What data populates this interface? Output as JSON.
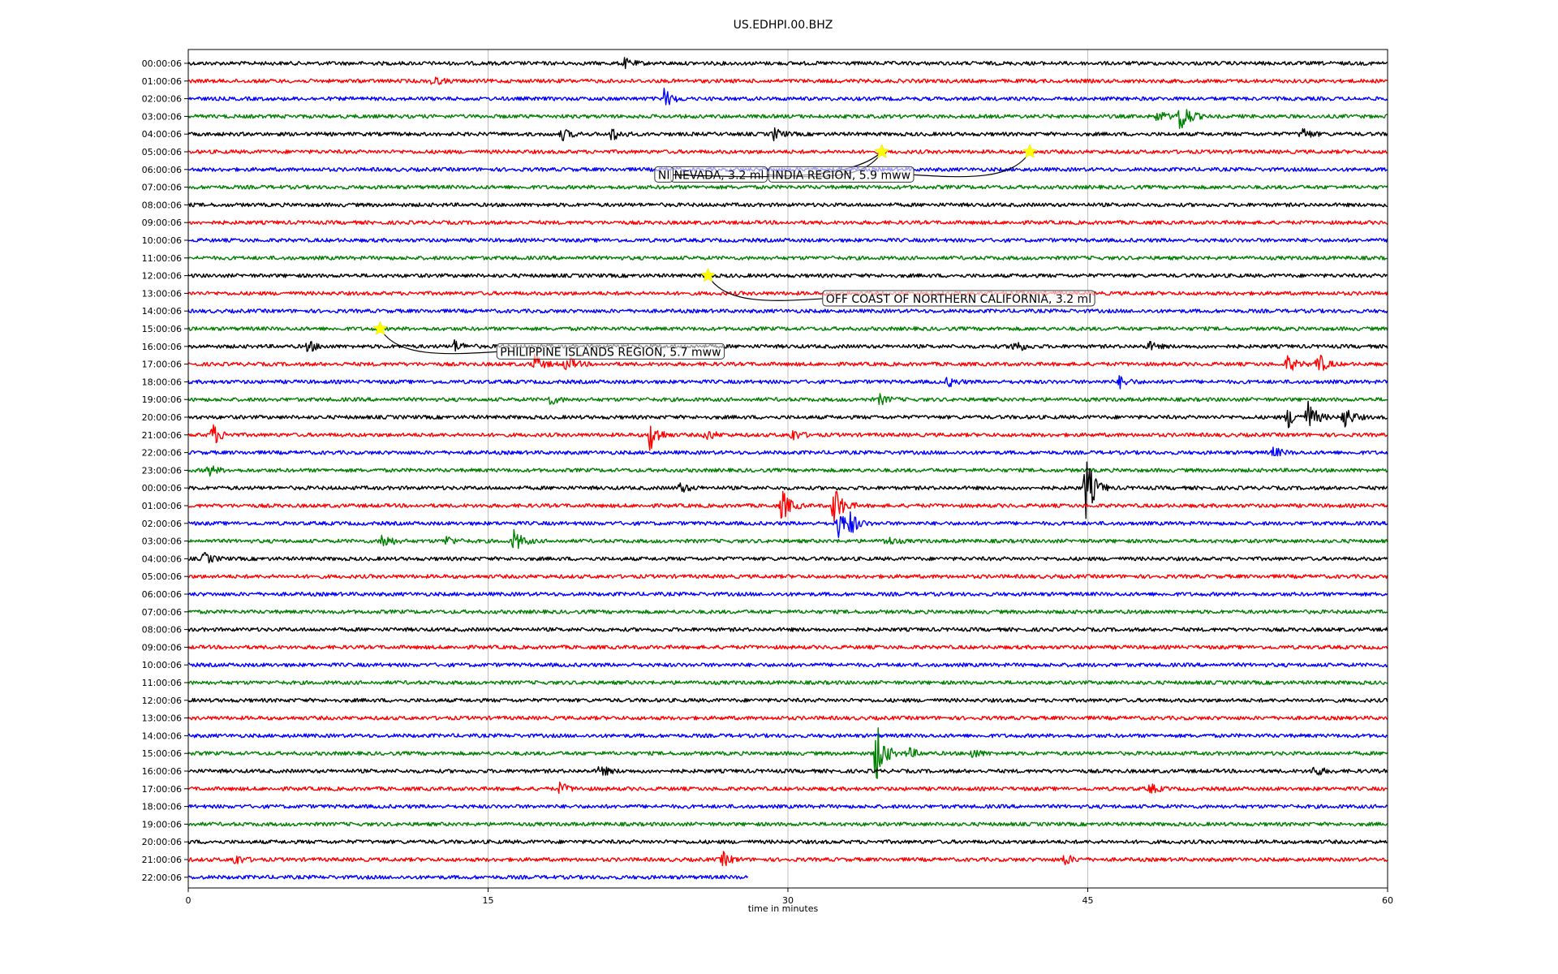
{
  "chart_data": {
    "type": "line",
    "title": "US.EDHPI.00.BHZ",
    "xlabel": "time in minutes",
    "ylabel": "",
    "xlim": [
      0,
      60
    ],
    "xticks": [
      "0",
      "15",
      "30",
      "45",
      "60"
    ],
    "grid": "vertical",
    "line_labels": [
      "00:00:06",
      "01:00:06",
      "02:00:06",
      "03:00:06",
      "04:00:06",
      "05:00:06",
      "06:00:06",
      "07:00:06",
      "08:00:06",
      "09:00:06",
      "10:00:06",
      "11:00:06",
      "12:00:06",
      "13:00:06",
      "14:00:06",
      "15:00:06",
      "16:00:06",
      "17:00:06",
      "18:00:06",
      "19:00:06",
      "20:00:06",
      "21:00:06",
      "22:00:06",
      "23:00:06",
      "00:00:06",
      "01:00:06",
      "02:00:06",
      "03:00:06",
      "04:00:06",
      "05:00:06",
      "06:00:06",
      "07:00:06",
      "08:00:06",
      "09:00:06",
      "10:00:06",
      "11:00:06",
      "12:00:06",
      "13:00:06",
      "14:00:06",
      "15:00:06",
      "16:00:06",
      "17:00:06",
      "18:00:06",
      "19:00:06",
      "20:00:06",
      "21:00:06",
      "22:00:06"
    ],
    "line_colors": [
      "#000000",
      "#ff0000",
      "#0000ff",
      "#008000"
    ],
    "last_line_end_minute": 28,
    "bursts": [
      {
        "line": 0,
        "t": 21.8,
        "amp": 0.5
      },
      {
        "line": 1,
        "t": 12.2,
        "amp": 0.5
      },
      {
        "line": 2,
        "t": 23.8,
        "amp": 1.0
      },
      {
        "line": 3,
        "t": 48.5,
        "amp": 0.6
      },
      {
        "line": 3,
        "t": 49.6,
        "amp": 2.2
      },
      {
        "line": 4,
        "t": 18.7,
        "amp": 0.6
      },
      {
        "line": 4,
        "t": 21.2,
        "amp": 0.7
      },
      {
        "line": 4,
        "t": 29.3,
        "amp": 0.6
      },
      {
        "line": 4,
        "t": 55.7,
        "amp": 0.7
      },
      {
        "line": 16,
        "t": 6.0,
        "amp": 0.6
      },
      {
        "line": 16,
        "t": 13.3,
        "amp": 0.6
      },
      {
        "line": 16,
        "t": 41.3,
        "amp": 0.8
      },
      {
        "line": 16,
        "t": 48.0,
        "amp": 0.5
      },
      {
        "line": 17,
        "t": 17.3,
        "amp": 1.0
      },
      {
        "line": 17,
        "t": 18.9,
        "amp": 0.9
      },
      {
        "line": 17,
        "t": 55.0,
        "amp": 0.9
      },
      {
        "line": 17,
        "t": 56.5,
        "amp": 1.2
      },
      {
        "line": 18,
        "t": 38.0,
        "amp": 0.5
      },
      {
        "line": 18,
        "t": 46.6,
        "amp": 0.6
      },
      {
        "line": 19,
        "t": 18.1,
        "amp": 0.5
      },
      {
        "line": 19,
        "t": 34.6,
        "amp": 0.5
      },
      {
        "line": 20,
        "t": 55.0,
        "amp": 1.1
      },
      {
        "line": 20,
        "t": 56.0,
        "amp": 1.7
      },
      {
        "line": 20,
        "t": 57.8,
        "amp": 1.3
      },
      {
        "line": 21,
        "t": 1.2,
        "amp": 1.2
      },
      {
        "line": 21,
        "t": 23.1,
        "amp": 1.7
      },
      {
        "line": 21,
        "t": 25.9,
        "amp": 0.6
      },
      {
        "line": 21,
        "t": 30.2,
        "amp": 0.6
      },
      {
        "line": 22,
        "t": 54.3,
        "amp": 0.5
      },
      {
        "line": 23,
        "t": 1.0,
        "amp": 0.6
      },
      {
        "line": 24,
        "t": 24.6,
        "amp": 0.5
      },
      {
        "line": 24,
        "t": 44.9,
        "amp": 3.5
      },
      {
        "line": 25,
        "t": 29.7,
        "amp": 1.7
      },
      {
        "line": 25,
        "t": 32.3,
        "amp": 2.3
      },
      {
        "line": 26,
        "t": 32.5,
        "amp": 1.5
      },
      {
        "line": 26,
        "t": 33.1,
        "amp": 1.0
      },
      {
        "line": 27,
        "t": 9.7,
        "amp": 0.9
      },
      {
        "line": 27,
        "t": 12.9,
        "amp": 0.5
      },
      {
        "line": 27,
        "t": 16.3,
        "amp": 1.2
      },
      {
        "line": 27,
        "t": 34.9,
        "amp": 0.5
      },
      {
        "line": 28,
        "t": 0.8,
        "amp": 0.6
      },
      {
        "line": 39,
        "t": 34.4,
        "amp": 3.4
      },
      {
        "line": 39,
        "t": 36.0,
        "amp": 0.6
      },
      {
        "line": 39,
        "t": 39.2,
        "amp": 0.5
      },
      {
        "line": 40,
        "t": 20.6,
        "amp": 0.6
      },
      {
        "line": 40,
        "t": 56.3,
        "amp": 0.6
      },
      {
        "line": 41,
        "t": 18.6,
        "amp": 0.6
      },
      {
        "line": 41,
        "t": 48.1,
        "amp": 0.5
      },
      {
        "line": 45,
        "t": 2.3,
        "amp": 0.6
      },
      {
        "line": 45,
        "t": 26.7,
        "amp": 0.8
      },
      {
        "line": 45,
        "t": 43.8,
        "amp": 0.6
      }
    ],
    "annotations": [
      {
        "text": "NEVADA, 3.2 ml",
        "star_line": 5,
        "star_t": 34.7,
        "label_line": 6.3,
        "label_t": 24.3
      },
      {
        "text": "NI",
        "star_line": 5,
        "star_t": 34.7,
        "label_line": 6.3,
        "label_t": 23.5
      },
      {
        "text": "INDIA REGION, 5.9 mww",
        "star_line": 5,
        "star_t": 42.1,
        "label_line": 6.3,
        "label_t": 29.2
      },
      {
        "text": "OFF COAST OF NORTHERN CALIFORNIA, 3.2 ml",
        "star_line": 12,
        "star_t": 26.0,
        "label_line": 13.3,
        "label_t": 31.9
      },
      {
        "text": "PHILIPPINE ISLANDS REGION, 5.7 mww",
        "star_line": 15,
        "star_t": 9.6,
        "label_line": 16.3,
        "label_t": 15.6
      }
    ]
  }
}
